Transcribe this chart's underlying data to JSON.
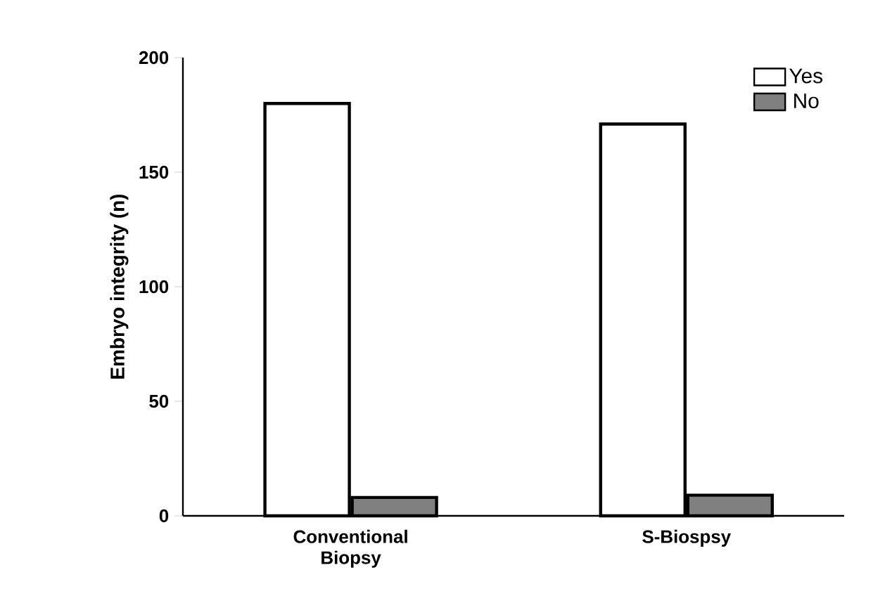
{
  "chart_data": {
    "type": "bar",
    "ylabel": "Embryo integrity (n)",
    "categories": [
      "Conventional Biopsy",
      "S-Biospsy"
    ],
    "series": [
      {
        "name": "Yes",
        "color": "#ffffff",
        "values": [
          180,
          171
        ]
      },
      {
        "name": "No",
        "color": "#808080",
        "values": [
          8,
          9
        ]
      }
    ],
    "ylim": [
      0,
      200
    ],
    "yticks": [
      0,
      50,
      100,
      150,
      200
    ],
    "grid": false,
    "legend": "top right"
  }
}
